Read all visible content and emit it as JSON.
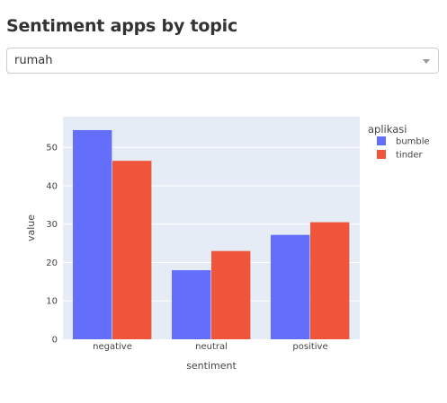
{
  "page": {
    "title": "Sentiment apps by topic"
  },
  "dropdown": {
    "selected": "rumah",
    "icon": "chevron-down-icon"
  },
  "chart_data": {
    "type": "bar",
    "barmode": "group",
    "categories": [
      "negative",
      "neutral",
      "positive"
    ],
    "series": [
      {
        "name": "bumble",
        "values": [
          54.5,
          18,
          27.2
        ],
        "color": "#636efa"
      },
      {
        "name": "tinder",
        "values": [
          46.5,
          23,
          30.5
        ],
        "color": "#ef553b"
      }
    ],
    "title": "",
    "xlabel": "sentiment",
    "ylabel": "value",
    "ylim": [
      0,
      58
    ],
    "yticks": [
      0,
      10,
      20,
      30,
      40,
      50
    ],
    "grid": true,
    "plot_background": "#e5ecf6",
    "legend": {
      "title": "aplikasi",
      "placement": "right"
    }
  }
}
